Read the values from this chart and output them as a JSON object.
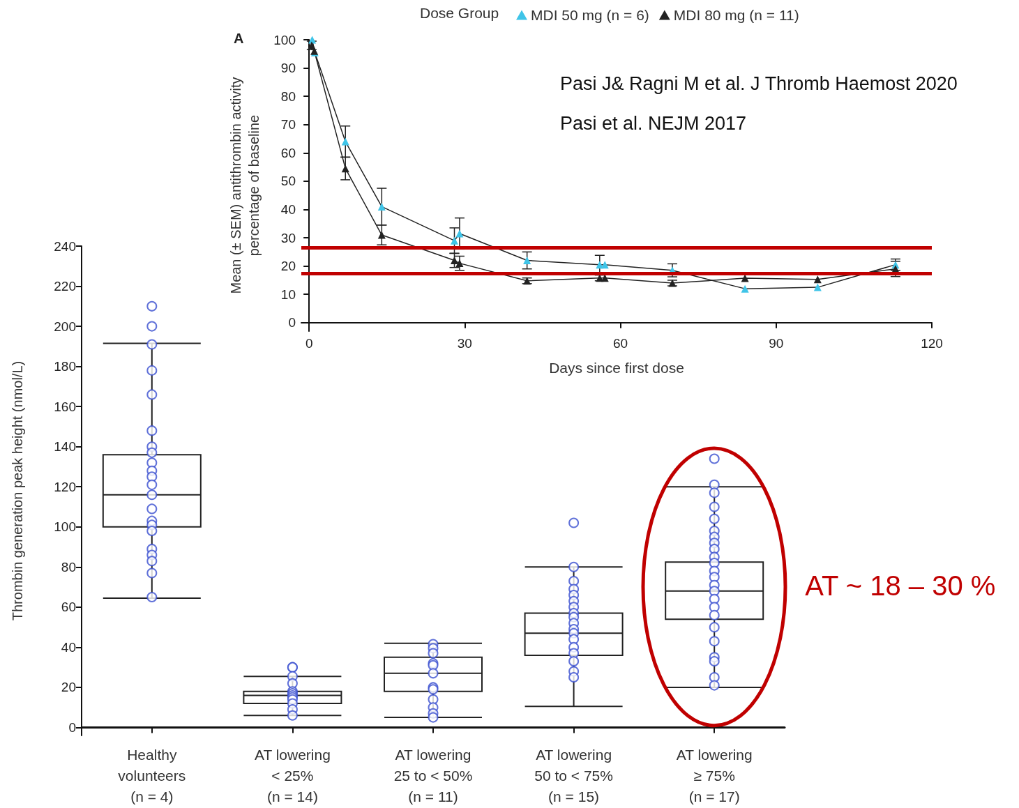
{
  "chart_data": [
    {
      "type": "box",
      "ylabel": "Thrombin generation peak height (nmol/L)",
      "categories": [
        "Healthy\nvolunteers\n(n = 4)",
        "AT lowering\n< 25%\n(n = 14)",
        "AT lowering\n25 to < 50%\n(n = 11)",
        "AT lowering\n50 to < 75%\n(n = 15)",
        "AT lowering\n≥ 75%\n(n = 17)"
      ],
      "boxes": [
        {
          "low": 64.5,
          "q1": 100,
          "median": 116,
          "q3": 136,
          "high": 191.5
        },
        {
          "low": 6,
          "q1": 12,
          "median": 16,
          "q3": 18,
          "high": 25.5
        },
        {
          "low": 5,
          "q1": 18,
          "median": 27,
          "q3": 35,
          "high": 42
        },
        {
          "low": 10.5,
          "q1": 36,
          "median": 47,
          "q3": 57,
          "high": 80
        },
        {
          "low": 20,
          "q1": 54,
          "median": 68,
          "q3": 82.5,
          "high": 120
        }
      ],
      "series": [
        {
          "type": "scatter",
          "color": "#3a4fd0",
          "marker": "circle",
          "x": [
            "Healthy\nvolunteers\n(n = 4)",
            "Healthy\nvolunteers\n(n = 4)",
            "Healthy\nvolunteers\n(n = 4)",
            "Healthy\nvolunteers\n(n = 4)",
            "Healthy\nvolunteers\n(n = 4)",
            "Healthy\nvolunteers\n(n = 4)",
            "Healthy\nvolunteers\n(n = 4)",
            "Healthy\nvolunteers\n(n = 4)",
            "Healthy\nvolunteers\n(n = 4)",
            "Healthy\nvolunteers\n(n = 4)",
            "Healthy\nvolunteers\n(n = 4)",
            "Healthy\nvolunteers\n(n = 4)",
            "Healthy\nvolunteers\n(n = 4)",
            "Healthy\nvolunteers\n(n = 4)",
            "Healthy\nvolunteers\n(n = 4)",
            "Healthy\nvolunteers\n(n = 4)",
            "Healthy\nvolunteers\n(n = 4)",
            "Healthy\nvolunteers\n(n = 4)",
            "Healthy\nvolunteers\n(n = 4)",
            "Healthy\nvolunteers\n(n = 4)",
            "Healthy\nvolunteers\n(n = 4)",
            "Healthy\nvolunteers\n(n = 4)",
            "AT lowering\n< 25%\n(n = 14)",
            "AT lowering\n< 25%\n(n = 14)",
            "AT lowering\n< 25%\n(n = 14)",
            "AT lowering\n< 25%\n(n = 14)",
            "AT lowering\n< 25%\n(n = 14)",
            "AT lowering\n< 25%\n(n = 14)",
            "AT lowering\n< 25%\n(n = 14)",
            "AT lowering\n< 25%\n(n = 14)",
            "AT lowering\n< 25%\n(n = 14)",
            "AT lowering\n< 25%\n(n = 14)",
            "AT lowering\n< 25%\n(n = 14)",
            "AT lowering\n< 25%\n(n = 14)",
            "AT lowering\n25 to < 50%\n(n = 11)",
            "AT lowering\n25 to < 50%\n(n = 11)",
            "AT lowering\n25 to < 50%\n(n = 11)",
            "AT lowering\n25 to < 50%\n(n = 11)",
            "AT lowering\n25 to < 50%\n(n = 11)",
            "AT lowering\n25 to < 50%\n(n = 11)",
            "AT lowering\n25 to < 50%\n(n = 11)",
            "AT lowering\n25 to < 50%\n(n = 11)",
            "AT lowering\n25 to < 50%\n(n = 11)",
            "AT lowering\n25 to < 50%\n(n = 11)",
            "AT lowering\n25 to < 50%\n(n = 11)",
            "AT lowering\n25 to < 50%\n(n = 11)",
            "AT lowering\n50 to < 75%\n(n = 15)",
            "AT lowering\n50 to < 75%\n(n = 15)",
            "AT lowering\n50 to < 75%\n(n = 15)",
            "AT lowering\n50 to < 75%\n(n = 15)",
            "AT lowering\n50 to < 75%\n(n = 15)",
            "AT lowering\n50 to < 75%\n(n = 15)",
            "AT lowering\n50 to < 75%\n(n = 15)",
            "AT lowering\n50 to < 75%\n(n = 15)",
            "AT lowering\n50 to < 75%\n(n = 15)",
            "AT lowering\n50 to < 75%\n(n = 15)",
            "AT lowering\n50 to < 75%\n(n = 15)",
            "AT lowering\n50 to < 75%\n(n = 15)",
            "AT lowering\n50 to < 75%\n(n = 15)",
            "AT lowering\n50 to < 75%\n(n = 15)",
            "AT lowering\n50 to < 75%\n(n = 15)",
            "AT lowering\n50 to < 75%\n(n = 15)",
            "AT lowering\n50 to < 75%\n(n = 15)",
            "AT lowering\n50 to < 75%\n(n = 15)",
            "AT lowering\n≥ 75%\n(n = 17)",
            "AT lowering\n≥ 75%\n(n = 17)",
            "AT lowering\n≥ 75%\n(n = 17)",
            "AT lowering\n≥ 75%\n(n = 17)",
            "AT lowering\n≥ 75%\n(n = 17)",
            "AT lowering\n≥ 75%\n(n = 17)",
            "AT lowering\n≥ 75%\n(n = 17)",
            "AT lowering\n≥ 75%\n(n = 17)",
            "AT lowering\n≥ 75%\n(n = 17)",
            "AT lowering\n≥ 75%\n(n = 17)",
            "AT lowering\n≥ 75%\n(n = 17)",
            "AT lowering\n≥ 75%\n(n = 17)",
            "AT lowering\n≥ 75%\n(n = 17)",
            "AT lowering\n≥ 75%\n(n = 17)",
            "AT lowering\n≥ 75%\n(n = 17)",
            "AT lowering\n≥ 75%\n(n = 17)",
            "AT lowering\n≥ 75%\n(n = 17)",
            "AT lowering\n≥ 75%\n(n = 17)",
            "AT lowering\n≥ 75%\n(n = 17)",
            "AT lowering\n≥ 75%\n(n = 17)",
            "AT lowering\n≥ 75%\n(n = 17)",
            "AT lowering\n≥ 75%\n(n = 17)",
            "AT lowering\n≥ 75%\n(n = 17)",
            "AT lowering\n≥ 75%\n(n = 17)"
          ],
          "values": [
            210,
            200,
            191,
            178,
            166,
            148,
            140,
            137,
            132,
            128,
            125,
            121,
            116,
            109,
            103,
            101,
            98,
            89,
            86,
            83,
            77,
            65,
            30,
            30,
            25.5,
            22,
            18,
            17,
            16,
            15,
            14,
            12,
            9,
            6,
            41.5,
            39.5,
            37,
            32,
            31,
            27,
            20,
            19,
            14,
            10,
            7,
            5,
            102,
            80,
            73,
            69,
            66,
            63,
            60,
            57,
            55,
            52,
            49,
            47,
            44,
            40,
            37,
            33,
            28,
            25,
            134,
            121,
            117,
            110,
            104,
            98,
            95,
            92,
            89,
            85,
            82,
            78,
            75,
            71,
            68,
            64,
            60,
            56,
            50,
            43,
            35,
            33,
            25,
            21
          ]
        }
      ],
      "ylim": [
        -4,
        240
      ],
      "yticks": [
        0,
        20,
        40,
        60,
        80,
        100,
        120,
        140,
        160,
        180,
        200,
        220,
        240
      ],
      "annotations": [
        "AT ~ 18 – 30 %"
      ],
      "grid": false,
      "legend": false
    },
    {
      "type": "line",
      "xlabel": "Days since first dose",
      "ylabel": "Mean (± SEM) antithrombin activity\npercentage of baseline",
      "legend_title": "Dose Group",
      "legend": "top",
      "marker": "triangle",
      "line_style": "solid",
      "series": [
        {
          "name": "MDI 50 mg (n = 6)",
          "color": "#3fc4e8",
          "x": [
            0.6,
            1.1,
            7,
            14,
            28,
            29,
            42,
            56,
            57,
            70,
            84,
            98,
            113
          ],
          "values": [
            100,
            95.5,
            64,
            41,
            29,
            31.5,
            22,
            20.5,
            20.5,
            18.5,
            12,
            12.5,
            20.5
          ],
          "errors": [
            null,
            null,
            5.5,
            6.5,
            4.5,
            5.5,
            3,
            3.3,
            null,
            2.3,
            null,
            null,
            2
          ]
        },
        {
          "name": "MDI 80 mg (n = 11)",
          "color": "#222222",
          "x": [
            0.5,
            1,
            7,
            14,
            28,
            29,
            42,
            56,
            57,
            70,
            84,
            98,
            113
          ],
          "values": [
            98,
            96,
            54.5,
            31,
            22,
            21,
            14.8,
            15.8,
            15.8,
            14,
            15.7,
            15.3,
            19
          ],
          "errors": [
            1.5,
            null,
            4,
            3.5,
            2.5,
            2.5,
            1,
            1,
            null,
            1,
            null,
            null,
            2.7
          ]
        }
      ],
      "xlim": [
        -1.5,
        120
      ],
      "xticks": [
        0,
        30,
        60,
        90,
        120
      ],
      "ylim": [
        -3,
        100
      ],
      "yticks": [
        0,
        10,
        20,
        30,
        40,
        50,
        60,
        70,
        80,
        90,
        100
      ],
      "ref_lines": [
        {
          "axis": "y",
          "value": 26.5,
          "color": "#c00000"
        },
        {
          "axis": "y",
          "value": 17.3,
          "color": "#c00000"
        }
      ],
      "annotations": [
        "A",
        "Pasi J& Ragni M et al. J Thromb Haemost 2020",
        "Pasi et al. NEJM 2017"
      ],
      "grid": false
    }
  ]
}
